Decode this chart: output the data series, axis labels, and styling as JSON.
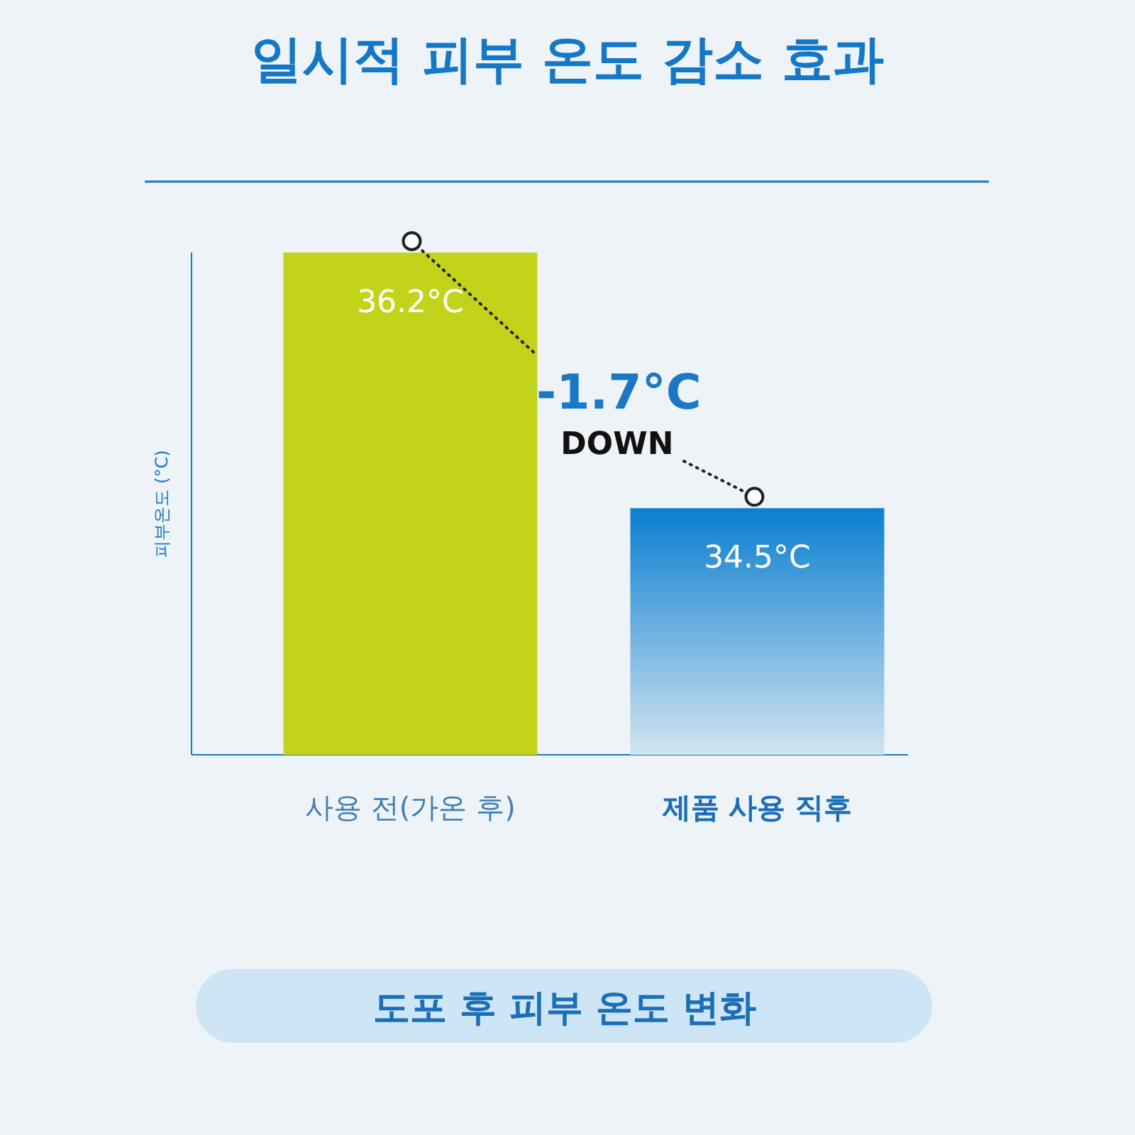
{
  "chart_data": {
    "type": "bar",
    "title": "일시적 피부 온도 감소 효과",
    "ylabel": "피부온도 (°C)",
    "categories": [
      "사용 전(가온 후)",
      "제품 사용 직후"
    ],
    "values": [
      36.2,
      34.5
    ],
    "colors": [
      "#c3d31a",
      "#0a7fd0"
    ],
    "ylim": [
      32.86,
      36.2
    ],
    "data_labels": true,
    "value_labels": [
      "36.2°C",
      "34.5°C"
    ],
    "annotations": [
      "-1.7°C",
      "DOWN",
      "도포 후 피부 온도 변화"
    ]
  }
}
